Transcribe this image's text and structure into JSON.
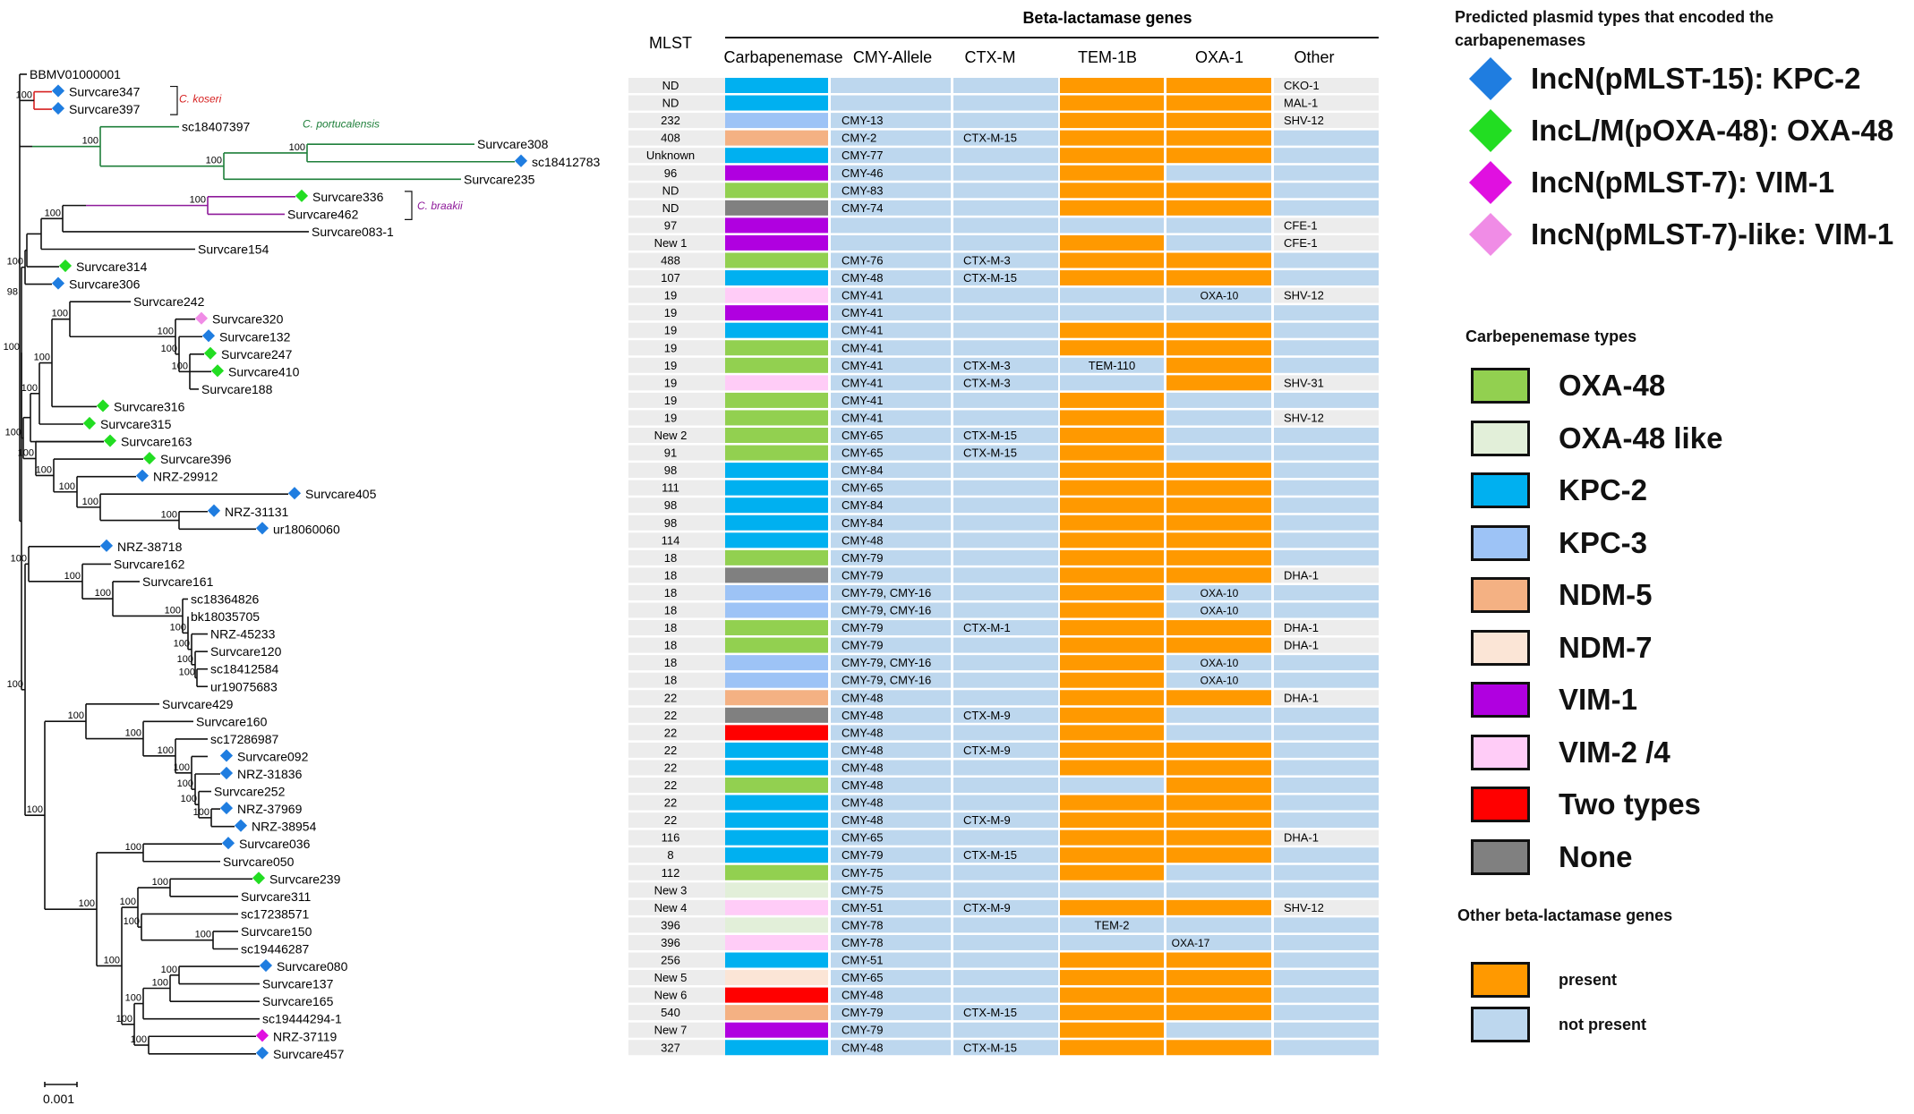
{
  "tree": {
    "scale_label": "0.001",
    "clade_labels": [
      {
        "text": "C. koseri",
        "color": "#d62020"
      },
      {
        "text": "C. portucalensis",
        "color": "#1e7f3a"
      },
      {
        "text": "C. braakii",
        "color": "#8e1a9a"
      }
    ],
    "leaves": [
      {
        "name": "BBMV01000001",
        "marker": "none"
      },
      {
        "name": "Survcare347",
        "marker": "kpc2"
      },
      {
        "name": "Survcare397",
        "marker": "kpc2"
      },
      {
        "name": "sc18407397",
        "marker": "none"
      },
      {
        "name": "Survcare308",
        "marker": "none"
      },
      {
        "name": "sc18412783",
        "marker": "kpc2"
      },
      {
        "name": "Survcare235",
        "marker": "none"
      },
      {
        "name": "Survcare336",
        "marker": "oxa48"
      },
      {
        "name": "Survcare462",
        "marker": "none"
      },
      {
        "name": "Survcare083-1",
        "marker": "none"
      },
      {
        "name": "Survcare154",
        "marker": "none"
      },
      {
        "name": "Survcare314",
        "marker": "oxa48"
      },
      {
        "name": "Survcare306",
        "marker": "kpc2"
      },
      {
        "name": "Survcare242",
        "marker": "none"
      },
      {
        "name": "Survcare320",
        "marker": "vim1like"
      },
      {
        "name": "Survcare132",
        "marker": "kpc2"
      },
      {
        "name": "Survcare247",
        "marker": "oxa48"
      },
      {
        "name": "Survcare410",
        "marker": "oxa48"
      },
      {
        "name": "Survcare188",
        "marker": "none"
      },
      {
        "name": "Survcare316",
        "marker": "oxa48"
      },
      {
        "name": "Survcare315",
        "marker": "oxa48"
      },
      {
        "name": "Survcare163",
        "marker": "oxa48"
      },
      {
        "name": "Survcare396",
        "marker": "oxa48"
      },
      {
        "name": "NRZ-29912",
        "marker": "kpc2"
      },
      {
        "name": "Survcare405",
        "marker": "kpc2"
      },
      {
        "name": "NRZ-31131",
        "marker": "kpc2"
      },
      {
        "name": "ur18060060",
        "marker": "kpc2"
      },
      {
        "name": "NRZ-38718",
        "marker": "kpc2"
      },
      {
        "name": "Survcare162",
        "marker": "none"
      },
      {
        "name": "Survcare161",
        "marker": "none"
      },
      {
        "name": "sc18364826",
        "marker": "none"
      },
      {
        "name": "bk18035705",
        "marker": "none"
      },
      {
        "name": "NRZ-45233",
        "marker": "none"
      },
      {
        "name": "Survcare120",
        "marker": "none"
      },
      {
        "name": "sc18412584",
        "marker": "none"
      },
      {
        "name": "ur19075683",
        "marker": "none"
      },
      {
        "name": "Survcare429",
        "marker": "none"
      },
      {
        "name": "Survcare160",
        "marker": "none"
      },
      {
        "name": "sc17286987",
        "marker": "none"
      },
      {
        "name": "Survcare092",
        "marker": "kpc2"
      },
      {
        "name": "NRZ-31836",
        "marker": "kpc2"
      },
      {
        "name": "Survcare252",
        "marker": "none"
      },
      {
        "name": "NRZ-37969",
        "marker": "kpc2"
      },
      {
        "name": "NRZ-38954",
        "marker": "kpc2"
      },
      {
        "name": "Survcare036",
        "marker": "kpc2"
      },
      {
        "name": "Survcare050",
        "marker": "none"
      },
      {
        "name": "Survcare239",
        "marker": "oxa48"
      },
      {
        "name": "Survcare311",
        "marker": "none"
      },
      {
        "name": "sc17238571",
        "marker": "none"
      },
      {
        "name": "Survcare150",
        "marker": "none"
      },
      {
        "name": "sc19446287",
        "marker": "none"
      },
      {
        "name": "Survcare080",
        "marker": "kpc2"
      },
      {
        "name": "Survcare137",
        "marker": "none"
      },
      {
        "name": "Survcare165",
        "marker": "none"
      },
      {
        "name": "sc19444294-1",
        "marker": "none"
      },
      {
        "name": "NRZ-37119",
        "marker": "vim1"
      },
      {
        "name": "Survcare457",
        "marker": "kpc2"
      }
    ],
    "bootstrap_value": "100",
    "bootstrap_value_alt": "98"
  },
  "matrix": {
    "super_header": "Beta-lactamase genes",
    "headers": [
      "MLST",
      "Carbapenemase",
      "CMY-Allele",
      "CTX-M",
      "TEM-1B",
      "OXA-1",
      "Other"
    ],
    "rows": [
      {
        "mlst": "ND",
        "carb": "kpc2",
        "cmy": "",
        "ctxm": "",
        "tem": 1,
        "tem_text": "",
        "oxa": 1,
        "oxa_text": "",
        "other": "CKO-1"
      },
      {
        "mlst": "ND",
        "carb": "kpc2",
        "cmy": "",
        "ctxm": "",
        "tem": 1,
        "tem_text": "",
        "oxa": 1,
        "oxa_text": "",
        "other": "MAL-1"
      },
      {
        "mlst": "232",
        "carb": "kpc3",
        "cmy": "CMY-13",
        "ctxm": "",
        "tem": 1,
        "tem_text": "",
        "oxa": 1,
        "oxa_text": "",
        "other": "SHV-12"
      },
      {
        "mlst": "408",
        "carb": "ndm5",
        "cmy": "CMY-2",
        "ctxm": "CTX-M-15",
        "tem": 1,
        "tem_text": "",
        "oxa": 1,
        "oxa_text": "",
        "other": ""
      },
      {
        "mlst": "Unknown",
        "carb": "kpc2",
        "cmy": "CMY-77",
        "ctxm": "",
        "tem": 1,
        "tem_text": "",
        "oxa": 1,
        "oxa_text": "",
        "other": ""
      },
      {
        "mlst": "96",
        "carb": "vim1",
        "cmy": "CMY-46",
        "ctxm": "",
        "tem": 1,
        "tem_text": "",
        "oxa": 0,
        "oxa_text": "",
        "other": ""
      },
      {
        "mlst": "ND",
        "carb": "oxa48",
        "cmy": "CMY-83",
        "ctxm": "",
        "tem": 1,
        "tem_text": "",
        "oxa": 1,
        "oxa_text": "",
        "other": ""
      },
      {
        "mlst": "ND",
        "carb": "none",
        "cmy": "CMY-74",
        "ctxm": "",
        "tem": 1,
        "tem_text": "",
        "oxa": 1,
        "oxa_text": "",
        "other": ""
      },
      {
        "mlst": "97",
        "carb": "vim1",
        "cmy": "",
        "ctxm": "",
        "tem": 0,
        "tem_text": "",
        "oxa": 0,
        "oxa_text": "",
        "other": "CFE-1"
      },
      {
        "mlst": "New_1",
        "carb": "vim1",
        "cmy": "",
        "ctxm": "",
        "tem": 1,
        "tem_text": "",
        "oxa": 0,
        "oxa_text": "",
        "other": "CFE-1"
      },
      {
        "mlst": "488",
        "carb": "oxa48",
        "cmy": "CMY-76",
        "ctxm": "CTX-M-3",
        "tem": 1,
        "tem_text": "",
        "oxa": 1,
        "oxa_text": "",
        "other": ""
      },
      {
        "mlst": "107",
        "carb": "kpc2",
        "cmy": "CMY-48",
        "ctxm": "CTX-M-15",
        "tem": 1,
        "tem_text": "",
        "oxa": 1,
        "oxa_text": "",
        "other": ""
      },
      {
        "mlst": "19",
        "carb": "vim2",
        "cmy": "CMY-41",
        "ctxm": "",
        "tem": 0,
        "tem_text": "",
        "oxa": 0,
        "oxa_text": "OXA-10",
        "other": "SHV-12"
      },
      {
        "mlst": "19",
        "carb": "vim1",
        "cmy": "CMY-41",
        "ctxm": "",
        "tem": 0,
        "tem_text": "",
        "oxa": 0,
        "oxa_text": "",
        "other": ""
      },
      {
        "mlst": "19",
        "carb": "kpc2",
        "cmy": "CMY-41",
        "ctxm": "",
        "tem": 1,
        "tem_text": "",
        "oxa": 1,
        "oxa_text": "",
        "other": ""
      },
      {
        "mlst": "19",
        "carb": "oxa48",
        "cmy": "CMY-41",
        "ctxm": "",
        "tem": 1,
        "tem_text": "",
        "oxa": 1,
        "oxa_text": "",
        "other": ""
      },
      {
        "mlst": "19",
        "carb": "oxa48",
        "cmy": "CMY-41",
        "ctxm": "CTX-M-3",
        "tem": 0,
        "tem_text": "TEM-110",
        "oxa": 1,
        "oxa_text": "",
        "other": ""
      },
      {
        "mlst": "19",
        "carb": "vim2",
        "cmy": "CMY-41",
        "ctxm": "CTX-M-3",
        "tem": 0,
        "tem_text": "",
        "oxa": 1,
        "oxa_text": "",
        "other": "SHV-31"
      },
      {
        "mlst": "19",
        "carb": "oxa48",
        "cmy": "CMY-41",
        "ctxm": "",
        "tem": 1,
        "tem_text": "",
        "oxa": 0,
        "oxa_text": "",
        "other": ""
      },
      {
        "mlst": "19",
        "carb": "oxa48",
        "cmy": "CMY-41",
        "ctxm": "",
        "tem": 1,
        "tem_text": "",
        "oxa": 0,
        "oxa_text": "",
        "other": "SHV-12"
      },
      {
        "mlst": "New_2",
        "carb": "oxa48",
        "cmy": "CMY-65",
        "ctxm": "CTX-M-15",
        "tem": 1,
        "tem_text": "",
        "oxa": 0,
        "oxa_text": "",
        "other": ""
      },
      {
        "mlst": "91",
        "carb": "oxa48",
        "cmy": "CMY-65",
        "ctxm": "CTX-M-15",
        "tem": 1,
        "tem_text": "",
        "oxa": 0,
        "oxa_text": "",
        "other": ""
      },
      {
        "mlst": "98",
        "carb": "kpc2",
        "cmy": "CMY-84",
        "ctxm": "",
        "tem": 1,
        "tem_text": "",
        "oxa": 1,
        "oxa_text": "",
        "other": ""
      },
      {
        "mlst": "111",
        "carb": "kpc2",
        "cmy": "CMY-65",
        "ctxm": "",
        "tem": 1,
        "tem_text": "",
        "oxa": 1,
        "oxa_text": "",
        "other": ""
      },
      {
        "mlst": "98",
        "carb": "kpc2",
        "cmy": "CMY-84",
        "ctxm": "",
        "tem": 1,
        "tem_text": "",
        "oxa": 1,
        "oxa_text": "",
        "other": ""
      },
      {
        "mlst": "98",
        "carb": "kpc2",
        "cmy": "CMY-84",
        "ctxm": "",
        "tem": 1,
        "tem_text": "",
        "oxa": 1,
        "oxa_text": "",
        "other": ""
      },
      {
        "mlst": "114",
        "carb": "kpc2",
        "cmy": "CMY-48",
        "ctxm": "",
        "tem": 1,
        "tem_text": "",
        "oxa": 1,
        "oxa_text": "",
        "other": ""
      },
      {
        "mlst": "18",
        "carb": "oxa48",
        "cmy": "CMY-79",
        "ctxm": "",
        "tem": 1,
        "tem_text": "",
        "oxa": 1,
        "oxa_text": "",
        "other": ""
      },
      {
        "mlst": "18",
        "carb": "none",
        "cmy": "CMY-79",
        "ctxm": "",
        "tem": 1,
        "tem_text": "",
        "oxa": 1,
        "oxa_text": "",
        "other": "DHA-1"
      },
      {
        "mlst": "18",
        "carb": "kpc3",
        "cmy": "CMY-79, CMY-16",
        "ctxm": "",
        "tem": 1,
        "tem_text": "",
        "oxa": 0,
        "oxa_text": "OXA-10",
        "other": ""
      },
      {
        "mlst": "18",
        "carb": "kpc3",
        "cmy": "CMY-79, CMY-16",
        "ctxm": "",
        "tem": 1,
        "tem_text": "",
        "oxa": 0,
        "oxa_text": "OXA-10",
        "other": ""
      },
      {
        "mlst": "18",
        "carb": "oxa48",
        "cmy": "CMY-79",
        "ctxm": "CTX-M-1",
        "tem": 1,
        "tem_text": "",
        "oxa": 1,
        "oxa_text": "",
        "other": "DHA-1"
      },
      {
        "mlst": "18",
        "carb": "oxa48",
        "cmy": "CMY-79",
        "ctxm": "",
        "tem": 1,
        "tem_text": "",
        "oxa": 1,
        "oxa_text": "",
        "other": "DHA-1"
      },
      {
        "mlst": "18",
        "carb": "kpc3",
        "cmy": "CMY-79, CMY-16",
        "ctxm": "",
        "tem": 1,
        "tem_text": "",
        "oxa": 0,
        "oxa_text": "OXA-10",
        "other": ""
      },
      {
        "mlst": "18",
        "carb": "kpc3",
        "cmy": "CMY-79, CMY-16",
        "ctxm": "",
        "tem": 1,
        "tem_text": "",
        "oxa": 0,
        "oxa_text": "OXA-10",
        "other": ""
      },
      {
        "mlst": "22",
        "carb": "ndm5",
        "cmy": "CMY-48",
        "ctxm": "",
        "tem": 1,
        "tem_text": "",
        "oxa": 1,
        "oxa_text": "",
        "other": "DHA-1"
      },
      {
        "mlst": "22",
        "carb": "none",
        "cmy": "CMY-48",
        "ctxm": "CTX-M-9",
        "tem": 1,
        "tem_text": "",
        "oxa": 0,
        "oxa_text": "",
        "other": ""
      },
      {
        "mlst": "22",
        "carb": "two",
        "cmy": "CMY-48",
        "ctxm": "",
        "tem": 1,
        "tem_text": "",
        "oxa": 0,
        "oxa_text": "",
        "other": ""
      },
      {
        "mlst": "22",
        "carb": "kpc2",
        "cmy": "CMY-48",
        "ctxm": "CTX-M-9",
        "tem": 1,
        "tem_text": "",
        "oxa": 1,
        "oxa_text": "",
        "other": ""
      },
      {
        "mlst": "22",
        "carb": "kpc2",
        "cmy": "CMY-48",
        "ctxm": "",
        "tem": 1,
        "tem_text": "",
        "oxa": 1,
        "oxa_text": "",
        "other": ""
      },
      {
        "mlst": "22",
        "carb": "oxa48",
        "cmy": "CMY-48",
        "ctxm": "",
        "tem": 0,
        "tem_text": "",
        "oxa": 1,
        "oxa_text": "",
        "other": ""
      },
      {
        "mlst": "22",
        "carb": "kpc2",
        "cmy": "CMY-48",
        "ctxm": "",
        "tem": 1,
        "tem_text": "",
        "oxa": 1,
        "oxa_text": "",
        "other": ""
      },
      {
        "mlst": "22",
        "carb": "kpc2",
        "cmy": "CMY-48",
        "ctxm": "CTX-M-9",
        "tem": 1,
        "tem_text": "",
        "oxa": 1,
        "oxa_text": "",
        "other": ""
      },
      {
        "mlst": "116",
        "carb": "kpc2",
        "cmy": "CMY-65",
        "ctxm": "",
        "tem": 1,
        "tem_text": "",
        "oxa": 1,
        "oxa_text": "",
        "other": "DHA-1"
      },
      {
        "mlst": "8",
        "carb": "kpc2",
        "cmy": "CMY-79",
        "ctxm": "CTX-M-15",
        "tem": 1,
        "tem_text": "",
        "oxa": 1,
        "oxa_text": "",
        "other": ""
      },
      {
        "mlst": "112",
        "carb": "oxa48",
        "cmy": "CMY-75",
        "ctxm": "",
        "tem": 1,
        "tem_text": "",
        "oxa": 0,
        "oxa_text": "",
        "other": ""
      },
      {
        "mlst": "New_3",
        "carb": "oxa48like",
        "cmy": "CMY-75",
        "ctxm": "",
        "tem": 0,
        "tem_text": "",
        "oxa": 0,
        "oxa_text": "",
        "other": ""
      },
      {
        "mlst": "New_4",
        "carb": "vim2",
        "cmy": "CMY-51",
        "ctxm": "CTX-M-9",
        "tem": 1,
        "tem_text": "",
        "oxa": 1,
        "oxa_text": "",
        "other": "SHV-12"
      },
      {
        "mlst": "396",
        "carb": "oxa48like",
        "cmy": "CMY-78",
        "ctxm": "",
        "tem": 0,
        "tem_text": "TEM-2",
        "oxa": 0,
        "oxa_text": "",
        "other": ""
      },
      {
        "mlst": "396",
        "carb": "vim2",
        "cmy": "CMY-78",
        "ctxm": "",
        "tem": 0,
        "tem_text": "",
        "oxa": 0,
        "oxa_text": "OXA-17",
        "other": ""
      },
      {
        "mlst": "256",
        "carb": "kpc2",
        "cmy": "CMY-51",
        "ctxm": "",
        "tem": 1,
        "tem_text": "",
        "oxa": 1,
        "oxa_text": "",
        "other": ""
      },
      {
        "mlst": "New_5",
        "carb": "ndm7",
        "cmy": "CMY-65",
        "ctxm": "",
        "tem": 1,
        "tem_text": "",
        "oxa": 1,
        "oxa_text": "",
        "other": ""
      },
      {
        "mlst": "New_6",
        "carb": "two",
        "cmy": "CMY-48",
        "ctxm": "",
        "tem": 1,
        "tem_text": "",
        "oxa": 1,
        "oxa_text": "",
        "other": ""
      },
      {
        "mlst": "540",
        "carb": "ndm5",
        "cmy": "CMY-79",
        "ctxm": "CTX-M-15",
        "tem": 1,
        "tem_text": "",
        "oxa": 1,
        "oxa_text": "",
        "other": ""
      },
      {
        "mlst": "New_7",
        "carb": "vim1",
        "cmy": "CMY-79",
        "ctxm": "",
        "tem": 1,
        "tem_text": "",
        "oxa": 0,
        "oxa_text": "",
        "other": ""
      },
      {
        "mlst": "327",
        "carb": "kpc2",
        "cmy": "CMY-48",
        "ctxm": "CTX-M-15",
        "tem": 1,
        "tem_text": "",
        "oxa": 1,
        "oxa_text": "",
        "other": ""
      }
    ]
  },
  "legend": {
    "plasmid_title": "Predicted plasmid types that encoded the carbapenemases",
    "plasmid_items": [
      {
        "key": "kpc2",
        "label": "IncN(pMLST-15): KPC-2",
        "color": "#1f7de0"
      },
      {
        "key": "oxa48",
        "label": "IncL/M(pOXA-48): OXA-48",
        "color": "#22dd22"
      },
      {
        "key": "vim1",
        "label": "IncN(pMLST-7): VIM-1",
        "color": "#e010e0"
      },
      {
        "key": "vim1like",
        "label": "IncN(pMLST-7)-like: VIM-1",
        "color": "#f08ce6"
      }
    ],
    "carb_title": "Carbepenemase types",
    "carb_items": [
      {
        "key": "oxa48",
        "label": "OXA-48",
        "color": "#92d050"
      },
      {
        "key": "oxa48like",
        "label": "OXA-48 like",
        "color": "#e2efd9"
      },
      {
        "key": "kpc2",
        "label": "KPC-2",
        "color": "#00b0f0"
      },
      {
        "key": "kpc3",
        "label": "KPC-3",
        "color": "#9dc3f6"
      },
      {
        "key": "ndm5",
        "label": "NDM-5",
        "color": "#f4b183"
      },
      {
        "key": "ndm7",
        "label": "NDM-7",
        "color": "#fbe5d6"
      },
      {
        "key": "vim1",
        "label": "VIM-1",
        "color": "#b000e0"
      },
      {
        "key": "vim2",
        "label": "VIM-2 /4",
        "color": "#ffccf7"
      },
      {
        "key": "two",
        "label": "Two types",
        "color": "#ff0000"
      },
      {
        "key": "none",
        "label": "None",
        "color": "#808080"
      }
    ],
    "other_title": "Other beta-lactamase genes",
    "other_items": [
      {
        "key": "present",
        "label": "present",
        "color": "#ff9900"
      },
      {
        "key": "absent",
        "label": "not present",
        "color": "#bdd7ee"
      }
    ]
  }
}
